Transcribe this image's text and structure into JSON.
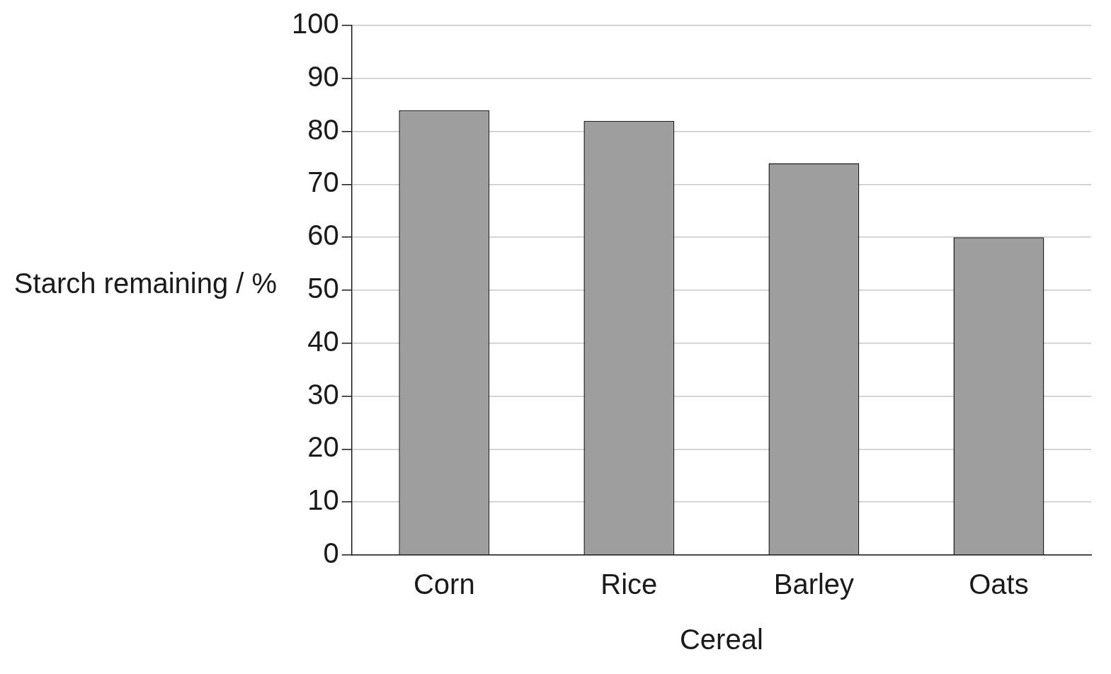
{
  "chart_data": {
    "type": "bar",
    "xlabel": "Cereal",
    "ylabel": "Starch remaining / %",
    "categories": [
      "Corn",
      "Rice",
      "Barley",
      "Oats"
    ],
    "values": [
      84,
      82,
      74,
      60
    ],
    "color": "#9e9e9e",
    "ylim": [
      0,
      100
    ],
    "yticks": [
      0,
      10,
      20,
      30,
      40,
      50,
      60,
      70,
      80,
      90,
      100
    ],
    "grid": "y",
    "legend": false
  }
}
